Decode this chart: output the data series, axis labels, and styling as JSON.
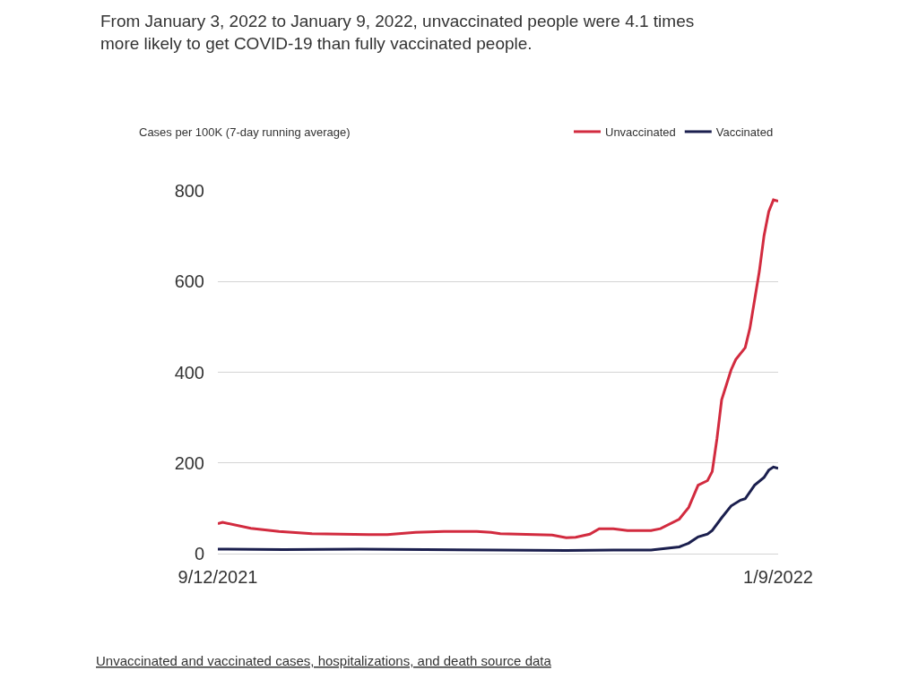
{
  "chart_data": {
    "type": "line",
    "title": "From January 3, 2022 to January 9, 2022, unvaccinated people were 4.1 times more likely to get COVID-19 than fully vaccinated people.",
    "ylabel": "Cases per 100K (7-day running average)",
    "series": [
      {
        "name": "Unvaccinated",
        "color": "#d22b3f",
        "x": [
          "2021-09-12",
          "2021-09-13",
          "2021-09-19",
          "2021-09-25",
          "2021-10-02",
          "2021-10-08",
          "2021-10-14",
          "2021-10-18",
          "2021-10-24",
          "2021-10-30",
          "2021-11-06",
          "2021-11-09",
          "2021-11-11",
          "2021-11-22",
          "2021-11-25",
          "2021-11-27",
          "2021-11-30",
          "2021-12-02",
          "2021-12-05",
          "2021-12-08",
          "2021-12-13",
          "2021-12-15",
          "2021-12-19",
          "2021-12-21",
          "2021-12-23",
          "2021-12-25",
          "2021-12-26",
          "2021-12-27",
          "2021-12-28",
          "2021-12-30",
          "2021-12-31",
          "2022-01-02",
          "2022-01-03",
          "2022-01-05",
          "2022-01-06",
          "2022-01-07",
          "2022-01-08",
          "2022-01-09"
        ],
        "values": [
          66,
          69,
          56,
          49,
          44,
          43,
          42,
          42,
          47,
          49,
          49,
          47,
          44,
          41,
          35,
          36,
          43,
          55,
          55,
          51,
          51,
          55,
          76,
          102,
          151,
          161,
          181,
          253,
          339,
          405,
          428,
          454,
          497,
          622,
          701,
          754,
          780,
          777
        ]
      },
      {
        "name": "Vaccinated",
        "color": "#1b1f4e",
        "x": [
          "2021-09-12",
          "2021-09-26",
          "2021-10-12",
          "2021-10-26",
          "2021-11-10",
          "2021-11-25",
          "2021-12-05",
          "2021-12-13",
          "2021-12-19",
          "2021-12-21",
          "2021-12-23",
          "2021-12-25",
          "2021-12-26",
          "2021-12-28",
          "2021-12-30",
          "2022-01-01",
          "2022-01-02",
          "2022-01-04",
          "2022-01-06",
          "2022-01-07",
          "2022-01-08",
          "2022-01-09"
        ],
        "values": [
          10,
          9,
          10,
          9,
          8,
          7,
          8,
          8,
          15,
          23,
          37,
          43,
          51,
          79,
          105,
          118,
          121,
          151,
          168,
          184,
          191,
          188
        ]
      }
    ],
    "xlim": [
      "2021-09-12",
      "2022-01-09"
    ],
    "xticks": [
      {
        "value": "2021-09-12",
        "label": "9/12/2021"
      },
      {
        "value": "2022-01-09",
        "label": "1/9/2022"
      }
    ],
    "ylim": [
      0,
      800
    ],
    "yticks": [
      0,
      200,
      400,
      600,
      800
    ],
    "grid": "y",
    "legend": "top right",
    "marker": "none",
    "line_style": "solid",
    "annotations": [
      "Unvaccinated and vaccinated cases, hospitalizations, and death source data"
    ]
  }
}
